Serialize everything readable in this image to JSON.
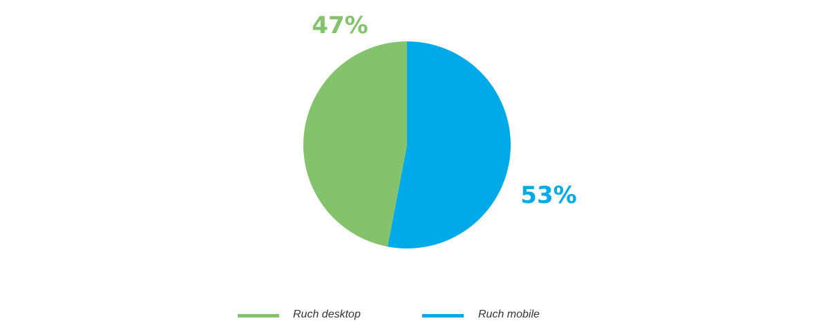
{
  "chart_data": {
    "type": "pie",
    "series": [
      {
        "name": "Ruch desktop",
        "value": 47,
        "label": "47%",
        "color": "#84c36b"
      },
      {
        "name": "Ruch mobile",
        "value": 53,
        "label": "53%",
        "color": "#00a9e7"
      }
    ],
    "legend_position": "bottom",
    "start_angle_deg": 0,
    "direction": "clockwise"
  }
}
